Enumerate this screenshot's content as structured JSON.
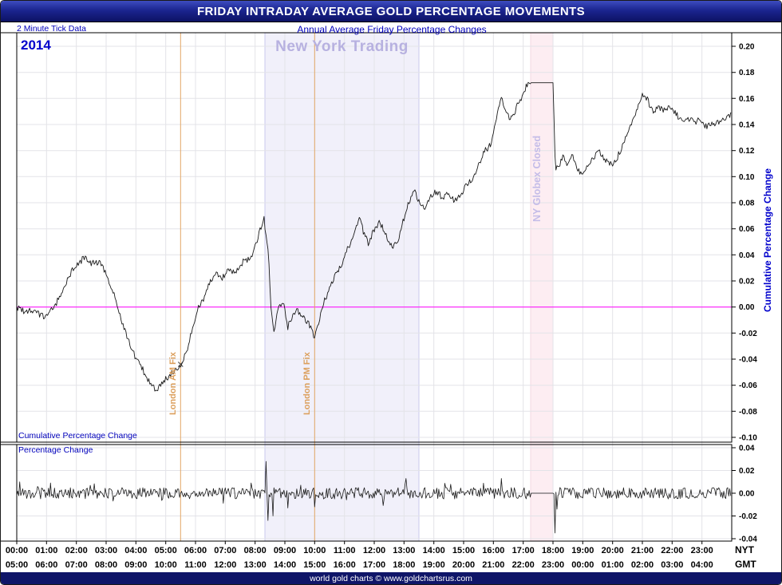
{
  "header": {
    "title": "FRIDAY INTRADAY AVERAGE GOLD PERCENTAGE MOVEMENTS",
    "left_note": "2 Minute Tick Data",
    "subtitle": "Annual Average Friday Percentage Changes"
  },
  "labels": {
    "year": "2014"
  },
  "footer": {
    "text": "world gold charts © www.goldchartsrus.com"
  },
  "chart_data": {
    "type": "line",
    "title": "FRIDAY INTRADAY AVERAGE GOLD PERCENTAGE MOVEMENTS",
    "subtitle": "Annual Average Friday Percentage Changes",
    "x": {
      "unit": "time of day",
      "range_hours": [
        0,
        24
      ],
      "tick_interval_minutes": 2,
      "row_tags": {
        "nyt": "NYT",
        "gmt": "GMT"
      },
      "label_rows": {
        "nyt": [
          "00:00",
          "01:00",
          "02:00",
          "03:00",
          "04:00",
          "05:00",
          "06:00",
          "07:00",
          "08:00",
          "09:00",
          "10:00",
          "11:00",
          "12:00",
          "13:00",
          "14:00",
          "15:00",
          "16:00",
          "17:00",
          "18:00",
          "19:00",
          "20:00",
          "21:00",
          "22:00",
          "23:00"
        ],
        "gmt": [
          "05:00",
          "06:00",
          "07:00",
          "08:00",
          "09:00",
          "10:00",
          "11:00",
          "12:00",
          "13:00",
          "14:00",
          "15:00",
          "16:00",
          "17:00",
          "18:00",
          "19:00",
          "20:00",
          "21:00",
          "22:00",
          "23:00",
          "00:00",
          "01:00",
          "02:00",
          "03:00",
          "04:00"
        ]
      }
    },
    "panels": [
      {
        "name": "Cumulative Percentage Change",
        "ylim": [
          -0.1,
          0.2
        ],
        "ytick_labels": [
          "0.20",
          "0.18",
          "0.16",
          "0.14",
          "0.12",
          "0.10",
          "0.08",
          "0.06",
          "0.04",
          "0.02",
          "0.00",
          "-0.02",
          "-0.04",
          "-0.06",
          "-0.08",
          "-0.10"
        ],
        "zero_line_color": "#ff00ff",
        "series": {
          "name": "2014",
          "color": "#1a1a1a",
          "jitter": 0.0025,
          "keyframes": [
            [
              0,
              0.0
            ],
            [
              0.3,
              -0.004
            ],
            [
              0.6,
              -0.002
            ],
            [
              0.9,
              -0.008
            ],
            [
              1.0,
              -0.005
            ],
            [
              1.3,
              0.002
            ],
            [
              1.7,
              0.021
            ],
            [
              2.0,
              0.033
            ],
            [
              2.3,
              0.038
            ],
            [
              2.5,
              0.033
            ],
            [
              2.8,
              0.035
            ],
            [
              3.0,
              0.024
            ],
            [
              3.3,
              0.008
            ],
            [
              3.6,
              -0.016
            ],
            [
              3.9,
              -0.035
            ],
            [
              4.2,
              -0.047
            ],
            [
              4.5,
              -0.059
            ],
            [
              4.7,
              -0.065
            ],
            [
              4.9,
              -0.058
            ],
            [
              5.1,
              -0.053
            ],
            [
              5.3,
              -0.048
            ],
            [
              5.5,
              -0.044
            ],
            [
              5.7,
              -0.035
            ],
            [
              5.9,
              -0.016
            ],
            [
              6.1,
              -0.001
            ],
            [
              6.3,
              0.008
            ],
            [
              6.5,
              0.019
            ],
            [
              6.7,
              0.027
            ],
            [
              6.9,
              0.022
            ],
            [
              7.1,
              0.03
            ],
            [
              7.3,
              0.026
            ],
            [
              7.5,
              0.033
            ],
            [
              7.7,
              0.036
            ],
            [
              7.9,
              0.04
            ],
            [
              8.1,
              0.054
            ],
            [
              8.3,
              0.068
            ],
            [
              8.45,
              0.039
            ],
            [
              8.55,
              -0.007
            ],
            [
              8.65,
              -0.019
            ],
            [
              8.75,
              -0.004
            ],
            [
              8.85,
              0.003
            ],
            [
              9.0,
              -0.001
            ],
            [
              9.1,
              -0.015
            ],
            [
              9.25,
              -0.007
            ],
            [
              9.4,
              -0.003
            ],
            [
              9.6,
              -0.007
            ],
            [
              9.8,
              -0.013
            ],
            [
              10.0,
              -0.023
            ],
            [
              10.15,
              -0.01
            ],
            [
              10.3,
              0.003
            ],
            [
              10.5,
              0.014
            ],
            [
              10.7,
              0.024
            ],
            [
              10.9,
              0.033
            ],
            [
              11.1,
              0.045
            ],
            [
              11.3,
              0.054
            ],
            [
              11.5,
              0.068
            ],
            [
              11.65,
              0.057
            ],
            [
              11.8,
              0.048
            ],
            [
              12.0,
              0.06
            ],
            [
              12.2,
              0.065
            ],
            [
              12.4,
              0.054
            ],
            [
              12.6,
              0.045
            ],
            [
              12.8,
              0.051
            ],
            [
              13.0,
              0.068
            ],
            [
              13.2,
              0.083
            ],
            [
              13.35,
              0.089
            ],
            [
              13.5,
              0.081
            ],
            [
              13.7,
              0.076
            ],
            [
              13.9,
              0.085
            ],
            [
              14.1,
              0.089
            ],
            [
              14.3,
              0.083
            ],
            [
              14.5,
              0.088
            ],
            [
              14.7,
              0.081
            ],
            [
              14.9,
              0.085
            ],
            [
              15.1,
              0.094
            ],
            [
              15.3,
              0.099
            ],
            [
              15.5,
              0.109
            ],
            [
              15.7,
              0.119
            ],
            [
              15.9,
              0.125
            ],
            [
              16.1,
              0.143
            ],
            [
              16.25,
              0.16
            ],
            [
              16.4,
              0.152
            ],
            [
              16.55,
              0.144
            ],
            [
              16.7,
              0.149
            ],
            [
              16.85,
              0.157
            ],
            [
              17.0,
              0.163
            ],
            [
              17.15,
              0.172
            ],
            [
              17.25,
              0.172
            ],
            [
              18.0,
              0.172
            ],
            [
              18.08,
              0.105
            ],
            [
              18.2,
              0.109
            ],
            [
              18.35,
              0.115
            ],
            [
              18.5,
              0.109
            ],
            [
              18.65,
              0.119
            ],
            [
              18.8,
              0.106
            ],
            [
              19.0,
              0.101
            ],
            [
              19.2,
              0.109
            ],
            [
              19.4,
              0.115
            ],
            [
              19.55,
              0.12
            ],
            [
              19.7,
              0.114
            ],
            [
              19.9,
              0.109
            ],
            [
              20.1,
              0.112
            ],
            [
              20.3,
              0.122
            ],
            [
              20.5,
              0.134
            ],
            [
              20.7,
              0.143
            ],
            [
              20.9,
              0.157
            ],
            [
              21.05,
              0.164
            ],
            [
              21.2,
              0.158
            ],
            [
              21.35,
              0.149
            ],
            [
              21.5,
              0.154
            ],
            [
              21.7,
              0.15
            ],
            [
              21.9,
              0.155
            ],
            [
              22.1,
              0.149
            ],
            [
              22.3,
              0.143
            ],
            [
              22.5,
              0.146
            ],
            [
              22.7,
              0.142
            ],
            [
              22.9,
              0.143
            ],
            [
              23.1,
              0.138
            ],
            [
              23.3,
              0.14
            ],
            [
              23.5,
              0.142
            ],
            [
              23.7,
              0.144
            ],
            [
              23.97,
              0.148
            ]
          ]
        }
      },
      {
        "name": "Percentage Change",
        "ylim": [
          -0.04,
          0.04
        ],
        "ytick_labels": [
          "0.04",
          "0.02",
          "0.00",
          "-0.02",
          "-0.04"
        ],
        "series": {
          "color": "#1a1a1a",
          "noise_amplitude": 0.005,
          "spike_probability": 0.06,
          "spikes": [
            [
              8.35,
              0.028
            ],
            [
              8.43,
              -0.024
            ],
            [
              8.6,
              -0.02
            ],
            [
              9.1,
              -0.013
            ],
            [
              10.0,
              -0.012
            ],
            [
              13.05,
              0.013
            ],
            [
              16.25,
              0.013
            ],
            [
              18.05,
              -0.035
            ],
            [
              18.12,
              -0.014
            ]
          ]
        }
      }
    ],
    "flat_interval_hours": [
      17.25,
      18.0
    ],
    "regions": [
      {
        "name": "New York Trading",
        "from": 8.33,
        "to": 13.5,
        "fill": "#edecf9",
        "edge": "#c9c9ec",
        "label_color": "#b7b1e0"
      },
      {
        "name": "NY Globex Closed",
        "from": 17.25,
        "to": 18.0,
        "fill": "#fce9ef",
        "edge": "#f2d8e2",
        "label_color": "#c4bce8"
      }
    ],
    "event_lines": [
      {
        "name": "London AM Fix",
        "at": 5.5,
        "color": "#e2a766",
        "marker_value": -0.044
      },
      {
        "name": "London PM Fix",
        "at": 10.0,
        "color": "#e2a766"
      }
    ],
    "noise_seed": 20140101
  }
}
